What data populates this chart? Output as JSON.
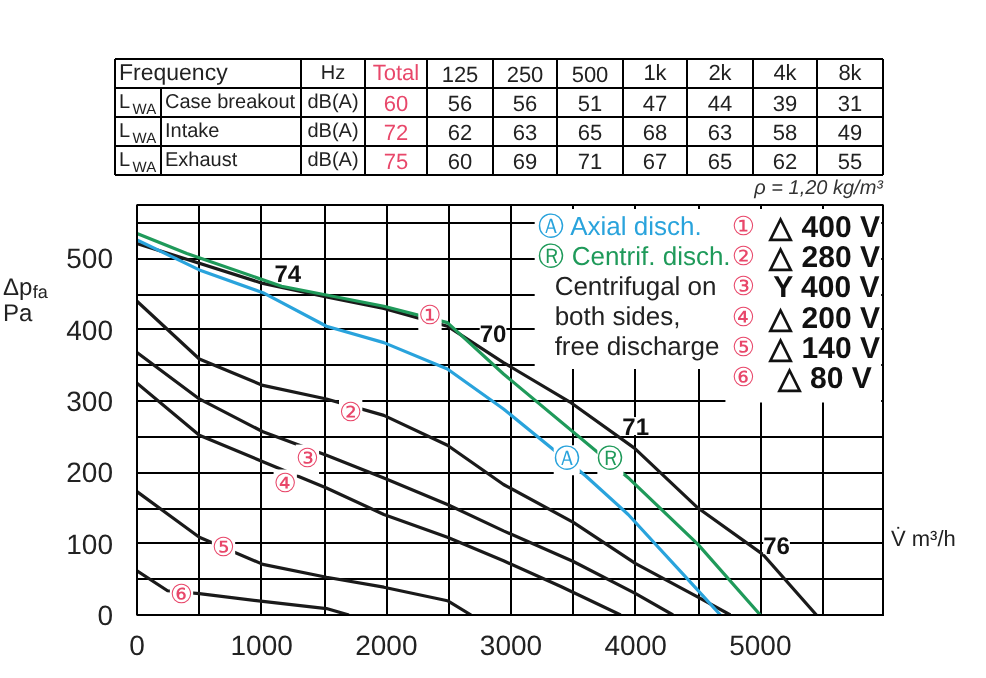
{
  "chart_data": {
    "type": "line",
    "xlabel": "V̇ m³/h",
    "ylabel": "Δp$_{fa}$\nPa",
    "xlim": [
      0,
      6000
    ],
    "ylim": [
      0,
      575
    ],
    "xticks": [
      0,
      {
        "value": 500,
        "label": null
      },
      1000,
      {
        "value": 1500,
        "label": null
      },
      2000,
      {
        "value": 2500,
        "label": null
      },
      3000,
      {
        "value": 3500,
        "label": null
      },
      4000,
      {
        "value": 4500,
        "label": null
      },
      5000,
      {
        "value": 5500,
        "label": null
      },
      {
        "value": 6000,
        "label": null
      }
    ],
    "yticks": [
      0,
      {
        "value": 50,
        "label": null
      },
      100,
      {
        "value": 150,
        "label": null
      },
      200,
      {
        "value": 250,
        "label": null
      },
      300,
      {
        "value": 350,
        "label": null
      },
      400,
      {
        "value": 450,
        "label": null
      },
      500,
      {
        "value": 550,
        "label": null
      }
    ],
    "grid": true,
    "line_style": "solid",
    "marker": "none",
    "series": [
      {
        "color": "#1a1a1a",
        "x": [
          0,
          1010,
          1520,
          1980,
          2490,
          2940,
          3470,
          3990,
          4500,
          5020,
          5450
        ],
        "values": [
          521,
          465,
          446,
          430,
          405,
          354,
          299,
          234,
          150,
          85,
          0
        ]
      },
      {
        "color": "#1a1a1a",
        "x": [
          0,
          500,
          1010,
          1520,
          1980,
          2490,
          2940,
          3500,
          4000,
          4500,
          4760
        ],
        "values": [
          440,
          359,
          322,
          303,
          280,
          238,
          183,
          130,
          72,
          25,
          0
        ]
      },
      {
        "color": "#1a1a1a",
        "x": [
          0,
          500,
          1010,
          1520,
          1980,
          2490,
          2940,
          3500,
          4000,
          4300
        ],
        "values": [
          368,
          303,
          257,
          224,
          192,
          155,
          118,
          75,
          30,
          0
        ]
      },
      {
        "color": "#1a1a1a",
        "x": [
          0,
          500,
          1010,
          1520,
          1980,
          2490,
          2940,
          3400,
          3880
        ],
        "values": [
          325,
          252,
          215,
          178,
          141,
          109,
          76,
          40,
          0
        ]
      },
      {
        "color": "#1a1a1a",
        "x": [
          0,
          500,
          1010,
          1520,
          1980,
          2490,
          2680
        ],
        "values": [
          173,
          109,
          71,
          53,
          39,
          20,
          0
        ]
      },
      {
        "color": "#1a1a1a",
        "x": [
          0,
          245,
          500,
          1010,
          1520,
          1700
        ],
        "values": [
          62,
          34,
          30,
          19,
          9,
          0
        ]
      },
      {
        "color": "#29a3dc",
        "x": [
          0,
          500,
          1010,
          1520,
          1980,
          2490,
          2940,
          3600,
          3940,
          4450,
          4680
        ],
        "values": [
          526,
          484,
          452,
          405,
          382,
          345,
          289,
          195,
          141,
          44,
          0
        ]
      },
      {
        "color": "#1f9a5a",
        "x": [
          0,
          400,
          1160,
          1980,
          2490,
          2940,
          3950,
          4500,
          5000
        ],
        "values": [
          535,
          507,
          461,
          433,
          410,
          338,
          191,
          99,
          0
        ]
      }
    ],
    "annotations": [
      "Frequency\tHz\tTotal\t125\t250\t500\t1k\t2k\t4k\t8k",
      "L$_{WA}$\tCase breakout\tdB(A)\t60\t56\t56\t51\t47\t44\t39\t31",
      "L$_{WA}$\tIntake\tdB(A)\t72\t62\t63\t65\t68\t63\t58\t49",
      "L$_{WA}$\tExhaust\tdB(A)\t75\t60\t69\t71\t67\t65\t62\t55",
      "ρ = 1,20 kg/m³",
      "Ⓐ Axial disch.",
      "Ⓡ Centrif. disch.",
      "Centrifugal on\nboth sides,\nfree discharge",
      "① △ 400 V",
      "② △ 280 V",
      "③ Y 400 V",
      "④ △ 200 V",
      "⑤ △ 140 V",
      "⑥ △  80 V",
      {
        "text": "74",
        "x": 1210,
        "y": 480
      },
      {
        "text": "70",
        "x": 2856,
        "y": 396
      },
      {
        "text": "71",
        "x": 4000,
        "y": 265
      },
      {
        "text": "76",
        "x": 5130,
        "y": 98
      },
      {
        "text": "①",
        "x": 2350,
        "y": 418
      },
      {
        "text": "②",
        "x": 1714,
        "y": 282
      },
      {
        "text": "③",
        "x": 1367,
        "y": 218
      },
      {
        "text": "④",
        "x": 1189,
        "y": 183
      },
      {
        "text": "⑤",
        "x": 694,
        "y": 92
      },
      {
        "text": "⑥",
        "x": 357,
        "y": 27
      },
      {
        "text": "Ⓐ",
        "x": 3447,
        "y": 217
      },
      {
        "text": "Ⓡ",
        "x": 3797,
        "y": 217
      }
    ]
  }
}
